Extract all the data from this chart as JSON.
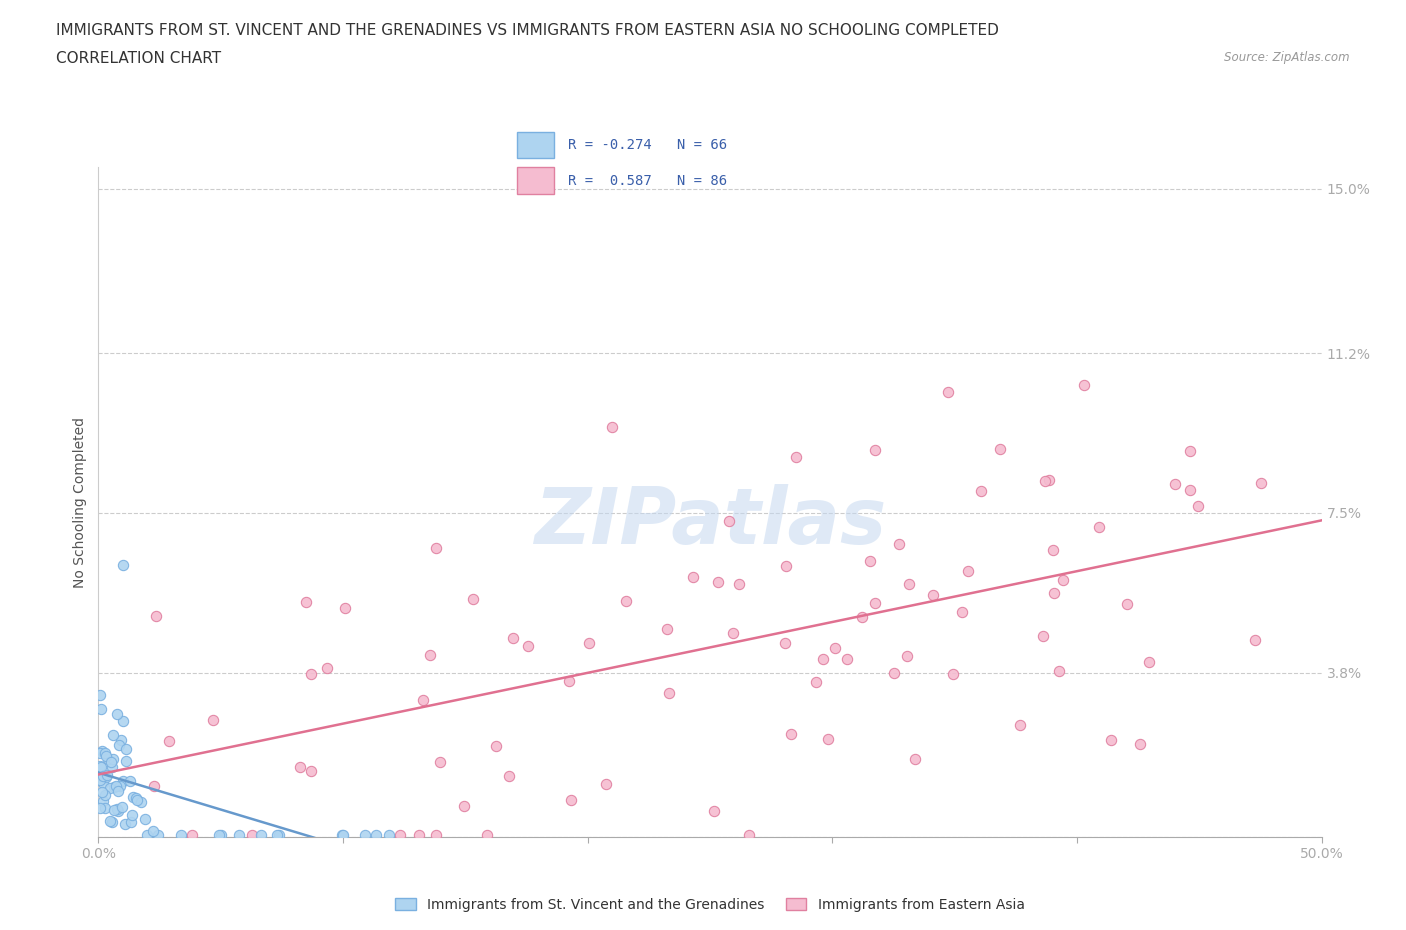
{
  "title": "IMMIGRANTS FROM ST. VINCENT AND THE GRENADINES VS IMMIGRANTS FROM EASTERN ASIA NO SCHOOLING COMPLETED",
  "subtitle": "CORRELATION CHART",
  "source": "Source: ZipAtlas.com",
  "ylabel": "No Schooling Completed",
  "xlim": [
    0.0,
    0.5
  ],
  "ylim": [
    0.0,
    0.155
  ],
  "xticks": [
    0.0,
    0.1,
    0.2,
    0.3,
    0.4,
    0.5
  ],
  "xticklabels": [
    "0.0%",
    "",
    "",
    "",
    "",
    "50.0%"
  ],
  "yticks": [
    0.0,
    0.038,
    0.075,
    0.112,
    0.15
  ],
  "yticklabels": [
    "",
    "3.8%",
    "7.5%",
    "11.2%",
    "15.0%"
  ],
  "grid_color": "#cccccc",
  "background_color": "#ffffff",
  "series1_color": "#aed4f0",
  "series1_edge_color": "#7ab0e0",
  "series1_label": "Immigrants from St. Vincent and the Grenadines",
  "series1_R": -0.274,
  "series1_N": 66,
  "series1_line_color": "#6699cc",
  "series2_color": "#f5bcd0",
  "series2_edge_color": "#e080a0",
  "series2_label": "Immigrants from Eastern Asia",
  "series2_R": 0.587,
  "series2_N": 86,
  "series2_line_color": "#e07090",
  "tick_label_color": "#4472c4",
  "title_fontsize": 11,
  "subtitle_fontsize": 11,
  "axis_label_fontsize": 10,
  "tick_fontsize": 10,
  "legend_fontsize": 10
}
